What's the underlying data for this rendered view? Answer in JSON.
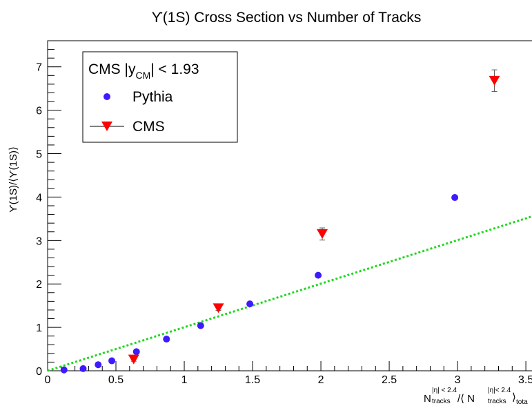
{
  "chart_data": {
    "type": "scatter",
    "title": "ϒ(1S) Cross Section vs Number of Tracks",
    "ylabel": "ϒ(1S)/⟨ϒ(1S)⟩",
    "xlabel": {
      "main1": "N",
      "sup1": "|η| < 2.4",
      "sub1": "tracks",
      "mid": "/⟨ N",
      "sup2": "|η|< 2.4",
      "sub2": "tracks",
      "end": "⟩",
      "sub3": "tota"
    },
    "xlim": [
      0,
      3.55
    ],
    "ylim": [
      0,
      7.6
    ],
    "xticks": [
      0,
      0.5,
      1,
      1.5,
      2,
      2.5,
      3,
      3.5
    ],
    "xtick_labels": [
      "0",
      "0.5",
      "1",
      "1.5",
      "2",
      "2.5",
      "3",
      "3.5"
    ],
    "yticks": [
      0,
      1,
      2,
      3,
      4,
      5,
      6,
      7
    ],
    "ytick_labels": [
      "0",
      "1",
      "2",
      "3",
      "4",
      "5",
      "6",
      "7"
    ],
    "legend": {
      "header_main": "CMS |y",
      "header_sub": "CM",
      "header_tail": "| < 1.93",
      "placement": "top-left"
    },
    "series": [
      {
        "name": "Pythia",
        "marker": "circle",
        "color": "#3c1cff",
        "x": [
          0.12,
          0.26,
          0.37,
          0.47,
          0.65,
          0.87,
          1.12,
          1.48,
          1.98,
          2.98
        ],
        "y": [
          0.02,
          0.05,
          0.14,
          0.23,
          0.44,
          0.73,
          1.04,
          1.54,
          2.2,
          3.99
        ]
      },
      {
        "name": "CMS",
        "marker": "triangle-down",
        "color": "#ff0000",
        "x": [
          0.63,
          1.25,
          2.01,
          3.27
        ],
        "y": [
          0.26,
          1.44,
          3.15,
          6.68
        ],
        "yerr": [
          0.04,
          0.05,
          0.14,
          0.25
        ]
      }
    ],
    "fit_line": {
      "style": "dotted",
      "color": "#1ed81e",
      "x": [
        0,
        3.55
      ],
      "y": [
        0,
        3.56
      ]
    },
    "grid": false
  }
}
